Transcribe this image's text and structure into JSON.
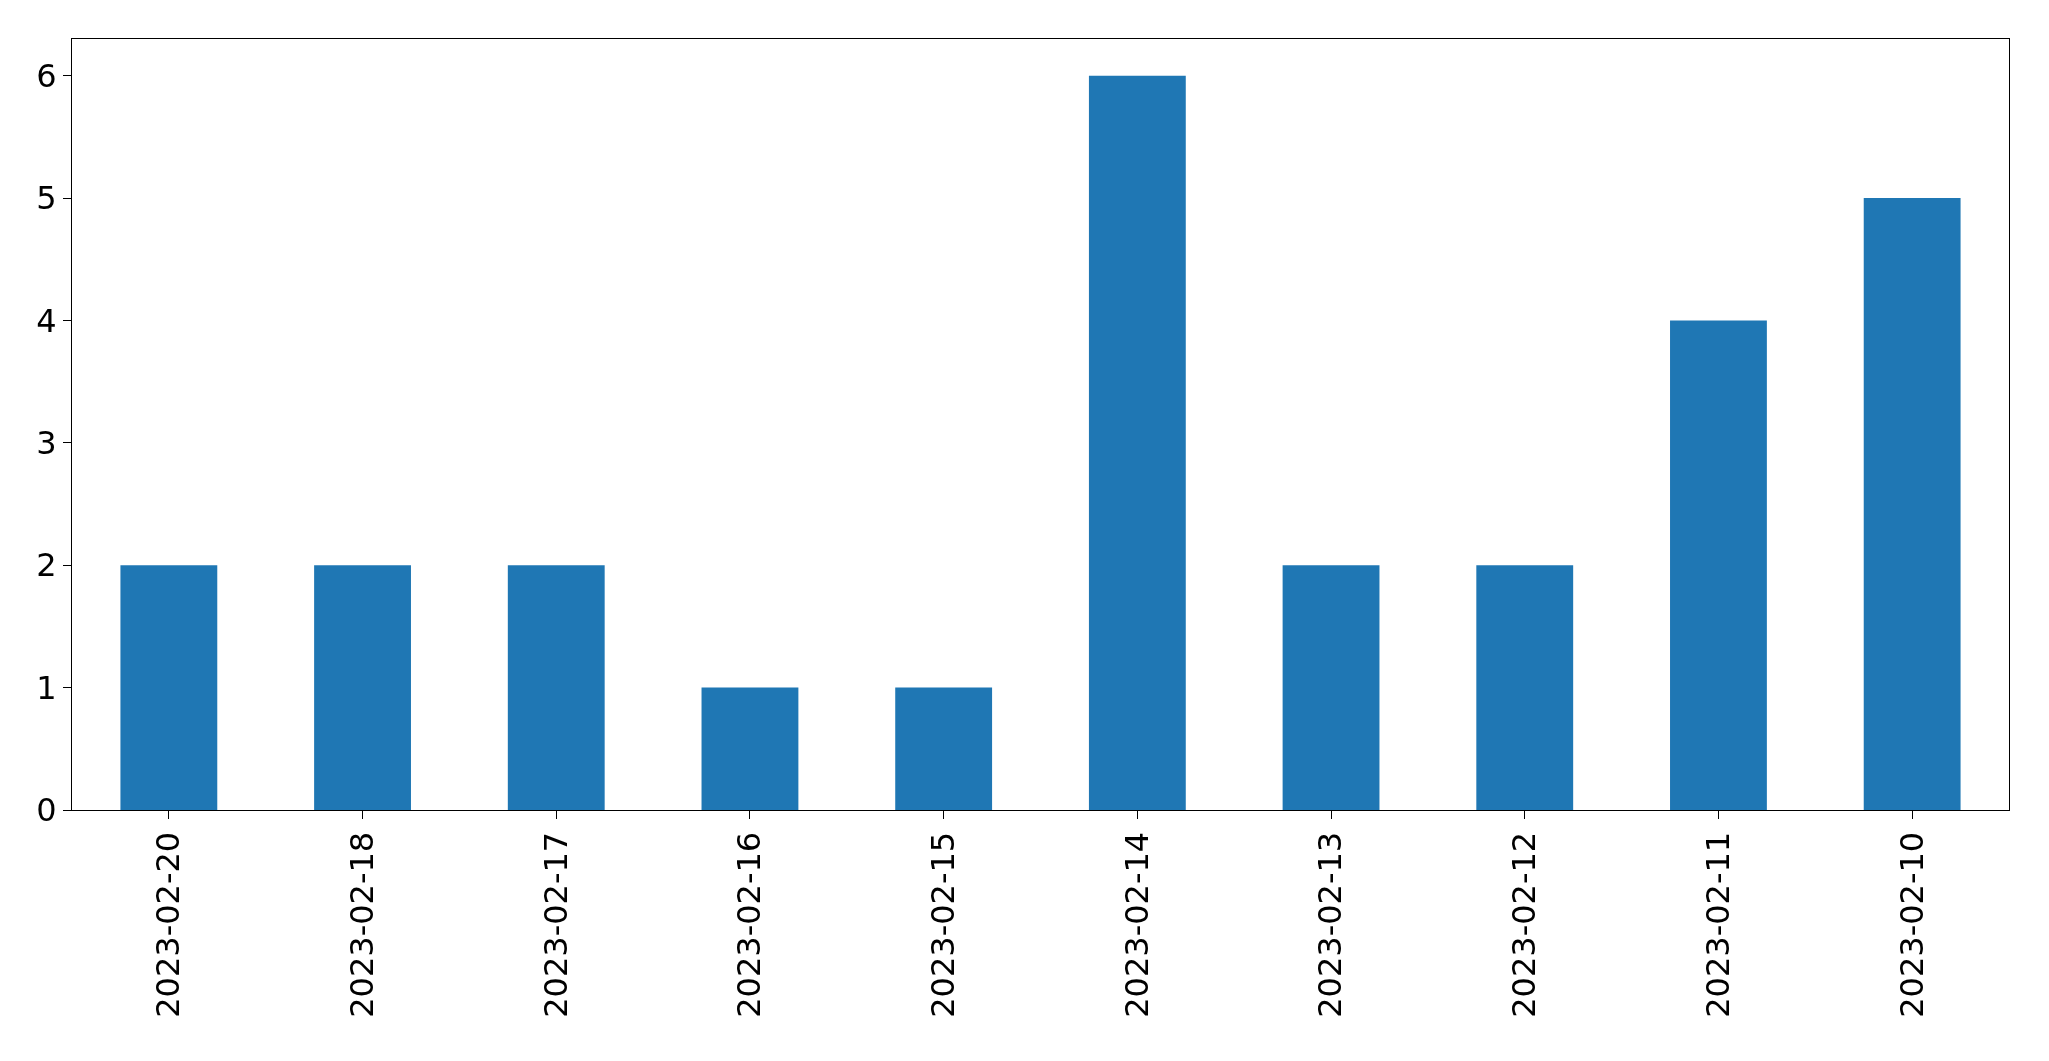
{
  "chart_data": {
    "type": "bar",
    "categories": [
      "2023-02-20",
      "2023-02-18",
      "2023-02-17",
      "2023-02-16",
      "2023-02-15",
      "2023-02-14",
      "2023-02-13",
      "2023-02-12",
      "2023-02-11",
      "2023-02-10"
    ],
    "values": [
      2,
      2,
      2,
      1,
      1,
      6,
      2,
      2,
      4,
      5
    ],
    "color": "#1f77b4",
    "ylim": [
      0,
      6.3
    ],
    "yticks": [
      0,
      1,
      2,
      3,
      4,
      5,
      6
    ]
  }
}
